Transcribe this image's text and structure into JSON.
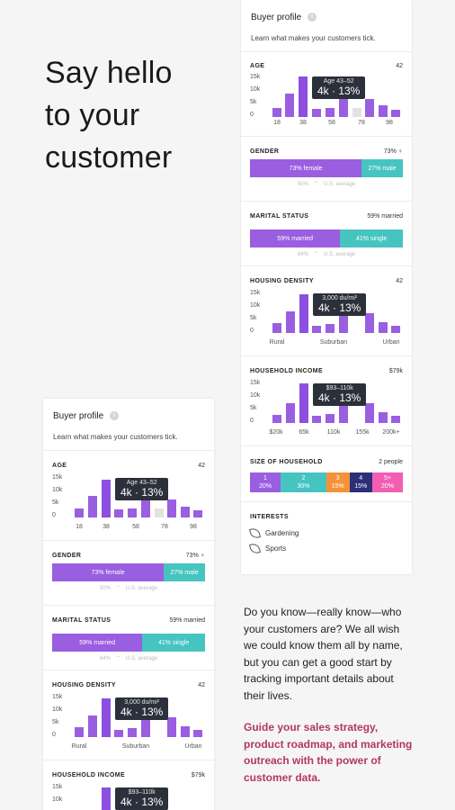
{
  "hero": {
    "title": "Say hello\nto your\ncustomer"
  },
  "card": {
    "title": "Buyer profile",
    "subtitle": "Learn what makes your customers tick.",
    "info": "i"
  },
  "age": {
    "label": "AGE",
    "value": "42",
    "y": [
      "15k",
      "10k",
      "5k",
      "0"
    ],
    "x": [
      "18",
      "38",
      "58",
      "78",
      "98"
    ],
    "tip_a": "Age 43–52",
    "tip_b": "4k · 13%"
  },
  "gender": {
    "label": "GENDER",
    "value": "73% ♀",
    "left": "73% female",
    "right": "27% male",
    "avg": "50%",
    "avg_label": "U.S. average",
    "left_color": "#9a5ee0",
    "right_color": "#45c4c0"
  },
  "marital": {
    "label": "MARITAL STATUS",
    "value": "59% married",
    "left": "59% married",
    "right": "41% single",
    "avg": "64%",
    "avg_label": "U.S. average"
  },
  "housing": {
    "label": "HOUSING DENSITY",
    "value": "42",
    "y": [
      "15k",
      "10k",
      "5k",
      "0"
    ],
    "x": [
      "Rural",
      "Suburban",
      "Urban"
    ],
    "tip_a": "3,000 du/mi²",
    "tip_b": "4k · 13%"
  },
  "income": {
    "label": "HOUSEHOLD INCOME",
    "value": "$79k",
    "y": [
      "15k",
      "10k",
      "5k",
      "0"
    ],
    "x": [
      "$20k",
      "65k",
      "110k",
      "155k",
      "200k+"
    ],
    "tip_a": "$93–110k",
    "tip_b": "4k · 13%"
  },
  "household": {
    "label": "SIZE OF HOUSEHOLD",
    "value": "2 people",
    "cells": [
      {
        "n": "1",
        "p": "20%",
        "c": "#9a5ee0"
      },
      {
        "n": "2",
        "p": "30%",
        "c": "#45c4c0"
      },
      {
        "n": "3",
        "p": "15%",
        "c": "#f5923a"
      },
      {
        "n": "4",
        "p": "15%",
        "c": "#2c2f78"
      },
      {
        "n": "5+",
        "p": "20%",
        "c": "#f25eb2"
      }
    ]
  },
  "interests": {
    "label": "INTERESTS",
    "items": [
      "Gardening",
      "Sports"
    ]
  },
  "body": {
    "text": "Do you know—really know—who your customers are? We all wish we could know them all by name, but you can get a good start by tracking important details about their lives."
  },
  "cta": {
    "text": "Guide your sales strategy, product roadmap, and marketing outreach with the power of customer data."
  }
}
